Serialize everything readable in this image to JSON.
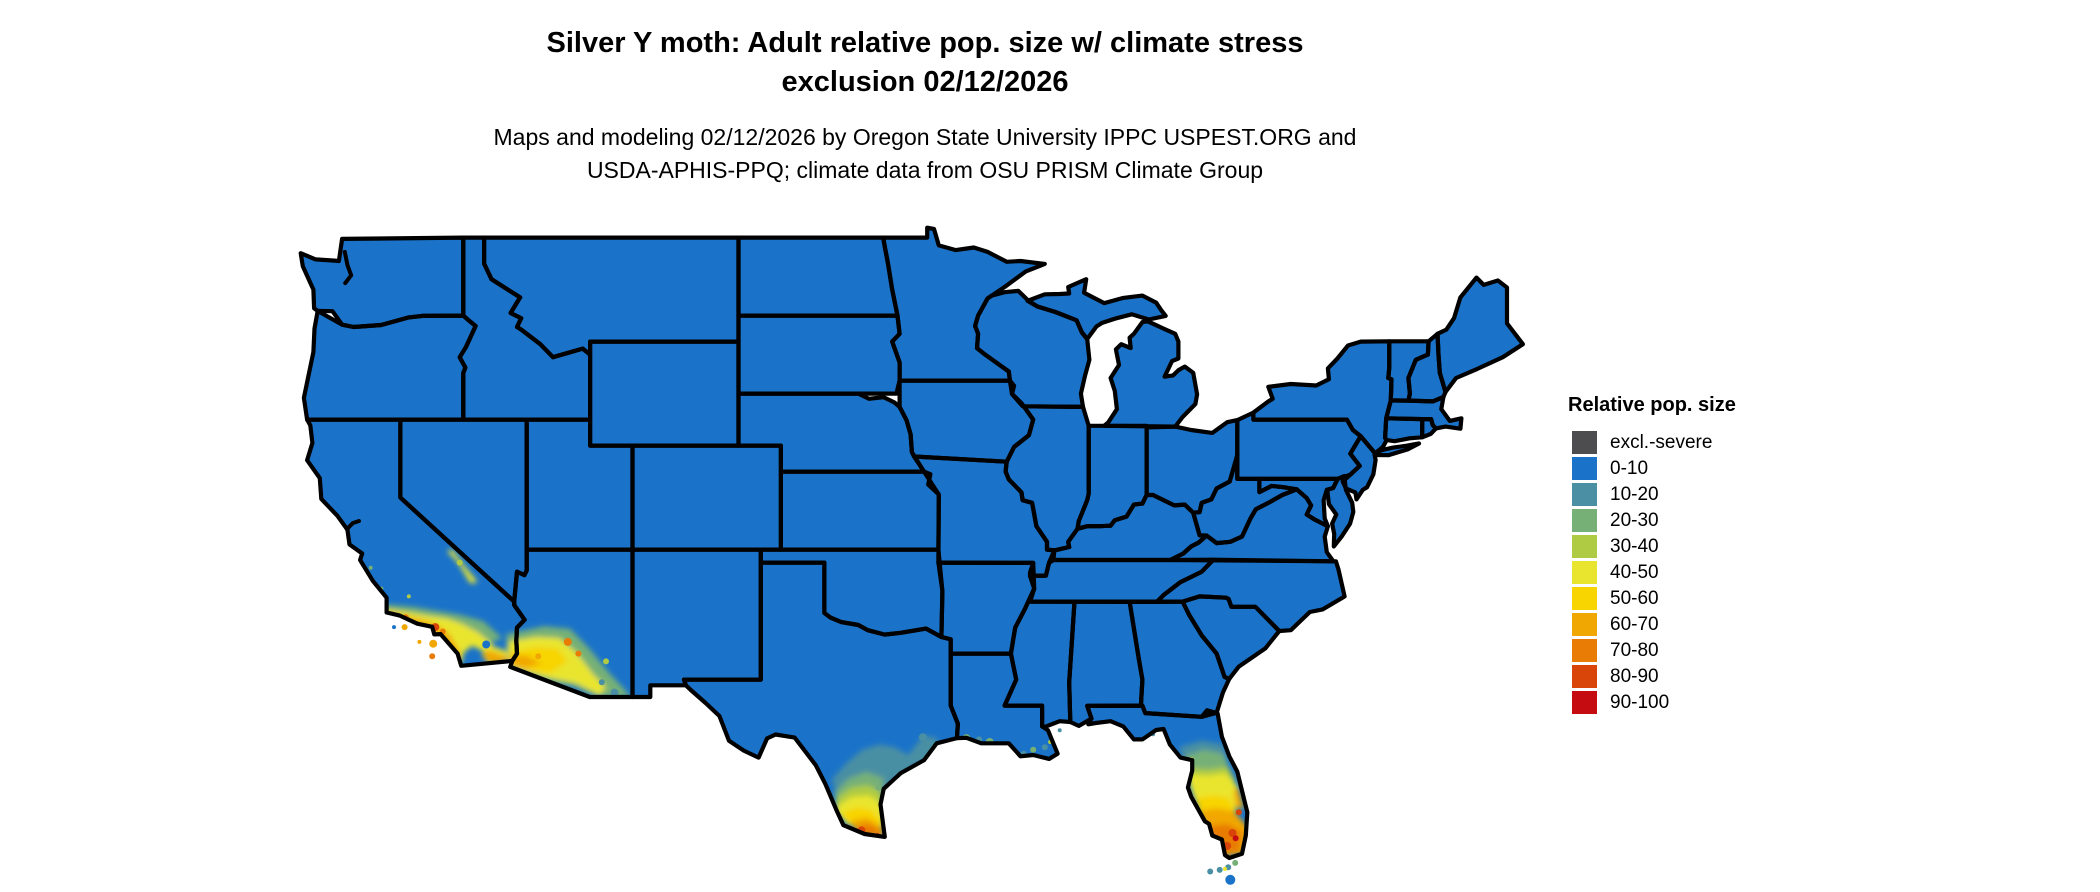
{
  "title": {
    "line1": "Silver Y moth: Adult relative pop. size w/ climate stress",
    "line2": "exclusion 02/12/2026"
  },
  "subtitle": {
    "line1": "Maps and modeling 02/12/2026 by Oregon State University IPPC USPEST.ORG and",
    "line2": "USDA-APHIS-PPQ; climate data from OSU PRISM Climate Group"
  },
  "legend": {
    "title": "Relative pop. size",
    "items": [
      {
        "label": "excl.-severe",
        "color": "#4D4D50"
      },
      {
        "label": "0-10",
        "color": "#1B73C9"
      },
      {
        "label": "10-20",
        "color": "#4A8FA3"
      },
      {
        "label": "20-30",
        "color": "#76B077"
      },
      {
        "label": "30-40",
        "color": "#AFCB43"
      },
      {
        "label": "40-50",
        "color": "#E9E52F"
      },
      {
        "label": "50-60",
        "color": "#F8D400"
      },
      {
        "label": "60-70",
        "color": "#F1A702"
      },
      {
        "label": "70-80",
        "color": "#E87C04"
      },
      {
        "label": "80-90",
        "color": "#D94508"
      },
      {
        "label": "90-100",
        "color": "#C50D11"
      }
    ]
  },
  "map": {
    "land_fill": "#1B73C9",
    "border_color": "#000000",
    "background": "#FFFFFF",
    "hotspots": [
      {
        "region": "Southern California coast",
        "levels": "40-90"
      },
      {
        "region": "Southwestern Arizona",
        "levels": "20-80"
      },
      {
        "region": "Southern Texas (Rio Grande Valley)",
        "levels": "10-90"
      },
      {
        "region": "Louisiana Gulf coast",
        "levels": "10-40"
      },
      {
        "region": "Central and southern Florida",
        "levels": "10-100"
      },
      {
        "region": "Florida Keys",
        "levels": "10-30"
      }
    ]
  }
}
